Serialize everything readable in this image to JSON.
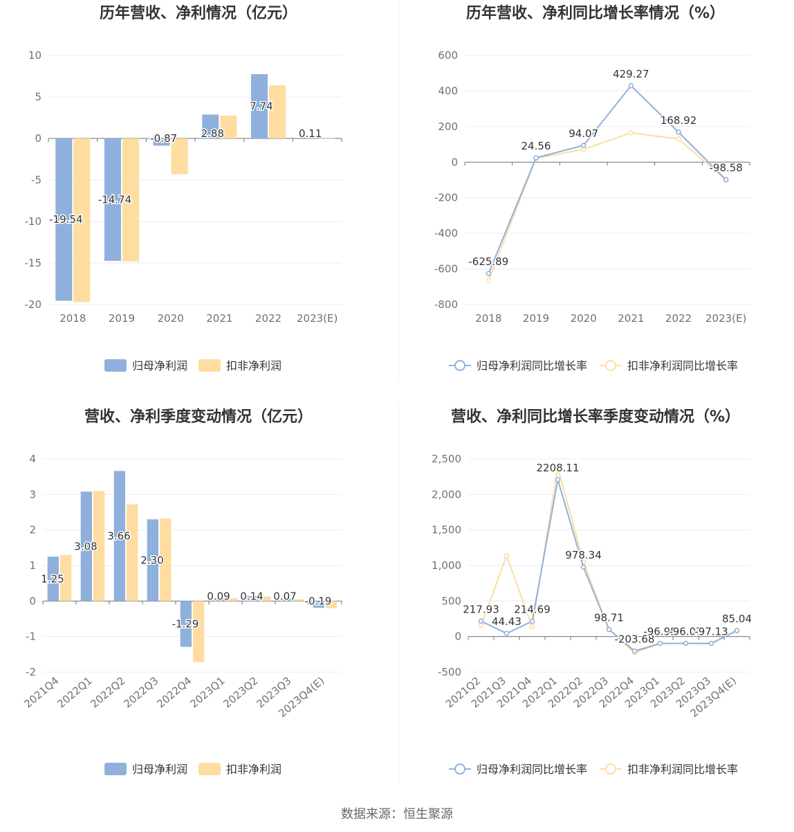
{
  "colors": {
    "primary": "#8fb0dc",
    "secondary": "#ffdda0",
    "grid": "#e8ebf2",
    "axis": "#6e7079"
  },
  "source": "数据来源：恒生聚源",
  "chart_data": [
    {
      "type": "bar",
      "title": "历年营收、净利情况（亿元）",
      "categories": [
        "2018",
        "2019",
        "2020",
        "2021",
        "2022",
        "2023(E)"
      ],
      "ylim": [
        -20,
        10
      ],
      "yticks": [
        10,
        5,
        0,
        -5,
        -10,
        -15,
        -20
      ],
      "legend": "bottom",
      "series": [
        {
          "name": "归母净利润",
          "values": [
            -19.54,
            -14.74,
            -0.87,
            2.88,
            7.74,
            0.11
          ],
          "labels": [
            "-19.54",
            "-14.74",
            "-0.87",
            "2.88",
            "7.74",
            "0.11"
          ]
        },
        {
          "name": "扣非净利润",
          "values": [
            -19.7,
            -14.8,
            -4.3,
            2.75,
            6.4,
            -0.05
          ]
        }
      ]
    },
    {
      "type": "line",
      "title": "历年营收、净利同比增长率情况（%）",
      "categories": [
        "2018",
        "2019",
        "2020",
        "2021",
        "2022",
        "2023(E)"
      ],
      "ylim": [
        -800,
        600
      ],
      "yticks": [
        600,
        400,
        200,
        0,
        -200,
        -400,
        -600,
        -800
      ],
      "legend": "bottom",
      "series": [
        {
          "name": "归母净利润同比增长率",
          "values": [
            -625.89,
            24.56,
            94.07,
            429.27,
            168.92,
            -98.58
          ],
          "labels": [
            "-625.89",
            "24.56",
            "94.07",
            "429.27",
            "168.92",
            "-98.58"
          ]
        },
        {
          "name": "扣非净利润同比增长率",
          "values": [
            -665,
            22,
            72,
            165,
            130,
            -100
          ]
        }
      ]
    },
    {
      "type": "bar",
      "title": "营收、净利季度变动情况（亿元）",
      "categories": [
        "2021Q4",
        "2022Q1",
        "2022Q2",
        "2022Q3",
        "2022Q4",
        "2023Q1",
        "2023Q2",
        "2023Q3",
        "2023Q4(E)"
      ],
      "ylim": [
        -2,
        4
      ],
      "yticks": [
        4,
        3,
        2,
        1,
        0,
        -1,
        -2
      ],
      "legend": "bottom",
      "series": [
        {
          "name": "归母净利润",
          "values": [
            1.25,
            3.08,
            3.66,
            2.3,
            -1.29,
            0.09,
            0.14,
            0.07,
            -0.19
          ],
          "labels": [
            "1.25",
            "3.08",
            "3.66",
            "2.30",
            "-1.29",
            "0.09",
            "0.14",
            "0.07",
            "-0.19"
          ]
        },
        {
          "name": "扣非净利润",
          "values": [
            1.3,
            3.1,
            2.72,
            2.32,
            -1.72,
            0.08,
            0.13,
            0.05,
            -0.2
          ]
        }
      ]
    },
    {
      "type": "line",
      "title": "营收、净利同比增长率季度变动情况（%）",
      "categories": [
        "2021Q2",
        "2021Q3",
        "2021Q4",
        "2022Q1",
        "2022Q2",
        "2022Q3",
        "2022Q4",
        "2023Q1",
        "2023Q2",
        "2023Q3",
        "2023Q4(E)"
      ],
      "ylim": [
        -500,
        2500
      ],
      "yticks": [
        2500,
        2000,
        1500,
        1000,
        500,
        0,
        -500
      ],
      "ytick_labels": [
        "2,500",
        "2,000",
        "1,500",
        "1,000",
        "500",
        "0",
        "-500"
      ],
      "legend": "bottom",
      "series": [
        {
          "name": "归母净利润同比增长率",
          "values": [
            217.93,
            44.43,
            214.69,
            2208.11,
            978.34,
            98.71,
            -203.68,
            -96.95,
            -96.07,
            -97.13,
            85.04
          ],
          "labels": [
            "217.93",
            "44.43",
            "214.69",
            "2208.11",
            "978.34",
            "98.71",
            "-203.68",
            "-96.95",
            "-96.07",
            "-97.13",
            "85.04"
          ]
        },
        {
          "name": "扣非净利润同比增长率",
          "values": [
            160,
            1140,
            140,
            2380,
            1050,
            100,
            -230,
            -95,
            -95,
            -95,
            85
          ]
        }
      ]
    }
  ]
}
